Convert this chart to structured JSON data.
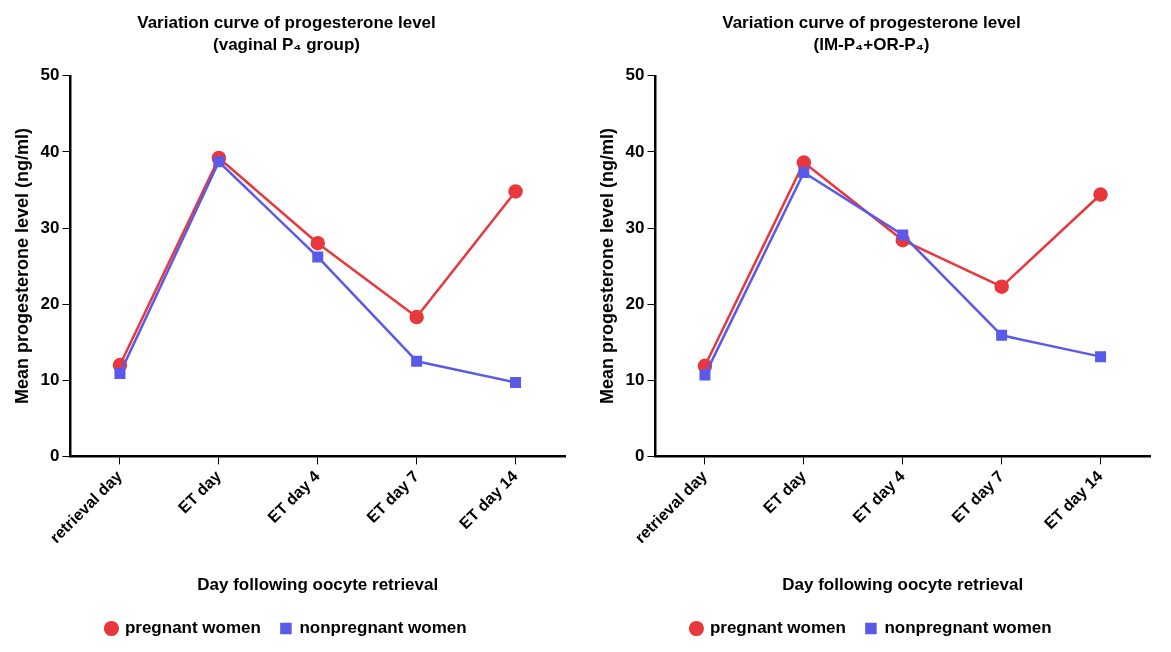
{
  "chart_data": [
    {
      "type": "line",
      "title": "Variation curve of progesterone level",
      "subtitle": "(vaginal P₄ group)",
      "xlabel": "Day following oocyte retrieval",
      "ylabel": "Mean progesterone level (ng/ml)",
      "categories": [
        "retrieval day",
        "ET day",
        "ET day 4",
        "ET day 7",
        "ET day 14"
      ],
      "ylim": [
        0,
        50
      ],
      "yticks": [
        0,
        10,
        20,
        30,
        40,
        50
      ],
      "grid": false,
      "legend": "bottom",
      "series": [
        {
          "name": "pregnant women",
          "color": "#e8383d",
          "marker": "circle",
          "values": [
            12.0,
            39.2,
            28.0,
            18.3,
            34.8
          ]
        },
        {
          "name": "nonpregnant women",
          "color": "#5a5ae8",
          "marker": "square",
          "values": [
            10.9,
            38.7,
            26.2,
            12.5,
            9.7
          ]
        }
      ]
    },
    {
      "type": "line",
      "title": "Variation curve of progesterone level",
      "subtitle": "(IM-P₄+OR-P₄)",
      "xlabel": "Day following oocyte retrieval",
      "ylabel": "Mean progesterone level (ng/ml)",
      "categories": [
        "retrieval day",
        "ET day",
        "ET day 4",
        "ET day 7",
        "ET day 14"
      ],
      "ylim": [
        0,
        50
      ],
      "yticks": [
        0,
        10,
        20,
        30,
        40,
        50
      ],
      "grid": false,
      "legend": "bottom",
      "series": [
        {
          "name": "pregnant women",
          "color": "#e8383d",
          "marker": "circle",
          "values": [
            11.9,
            38.6,
            28.4,
            22.3,
            34.4
          ]
        },
        {
          "name": "nonpregnant women",
          "color": "#5a5ae8",
          "marker": "square",
          "values": [
            10.7,
            37.3,
            29.1,
            15.9,
            13.1
          ]
        }
      ]
    }
  ]
}
